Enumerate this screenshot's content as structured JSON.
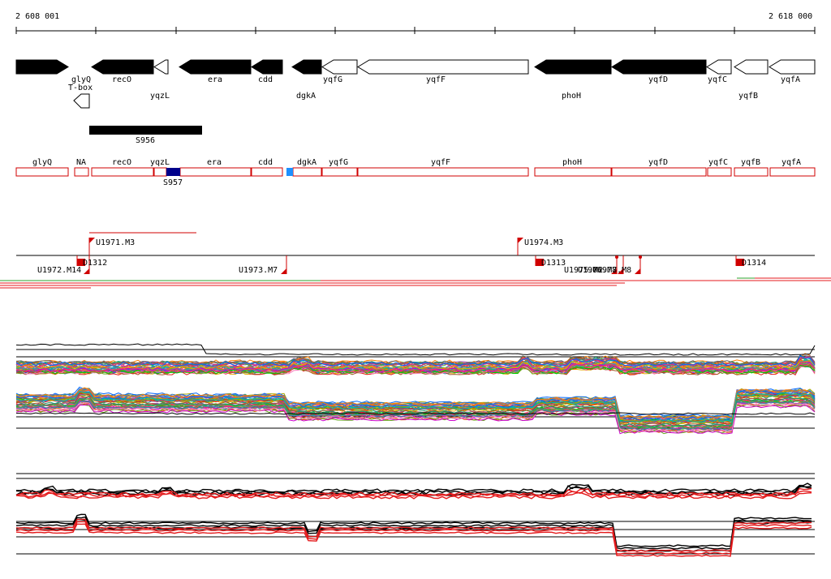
{
  "coords": {
    "start": "2 608 001",
    "end": "2 618 000"
  },
  "genes_top": [
    {
      "label": "glyQ",
      "dir": "right",
      "fill": "black"
    },
    {
      "label": "recO",
      "dir": "left",
      "fill": "black"
    },
    {
      "label": "yqzL",
      "dir": "left",
      "fill": "white"
    },
    {
      "label": "era",
      "dir": "left",
      "fill": "black"
    },
    {
      "label": "cdd",
      "dir": "left",
      "fill": "black"
    },
    {
      "label": "dgkA",
      "dir": "left",
      "fill": "black"
    },
    {
      "label": "yqfG",
      "dir": "left",
      "fill": "white"
    },
    {
      "label": "yqfF",
      "dir": "left",
      "fill": "white"
    },
    {
      "label": "phoH",
      "dir": "left",
      "fill": "black"
    },
    {
      "label": "yqfD",
      "dir": "left",
      "fill": "black"
    },
    {
      "label": "yqfC",
      "dir": "left",
      "fill": "white"
    },
    {
      "label": "yqfB",
      "dir": "left",
      "fill": "white"
    },
    {
      "label": "yqfA",
      "dir": "left",
      "fill": "white"
    }
  ],
  "tbox": {
    "label": "T-box"
  },
  "s956": {
    "label": "S956"
  },
  "annot_boxes": [
    {
      "label": "glyQ"
    },
    {
      "label": "NA"
    },
    {
      "label": "recO"
    },
    {
      "label": "yqzL"
    },
    {
      "label": "era"
    },
    {
      "label": "cdd"
    },
    {
      "label": "dgkA"
    },
    {
      "label": "yqfG"
    },
    {
      "label": "yqfF"
    },
    {
      "label": "phoH"
    },
    {
      "label": "yqfD"
    },
    {
      "label": "yqfC"
    },
    {
      "label": "yqfB"
    },
    {
      "label": "yqfA"
    }
  ],
  "s957": {
    "label": "S957"
  },
  "upshift_markers": [
    {
      "label": "U1971.M3"
    },
    {
      "label": "U1974.M3"
    },
    {
      "label": "U1972.M14"
    },
    {
      "label": "U1973.M7"
    },
    {
      "label": "U1975.M2"
    },
    {
      "label": "U1976.M8"
    },
    {
      "label": "U1977.M8"
    }
  ],
  "down_markers": [
    {
      "label": "D1312"
    },
    {
      "label": "D1313"
    },
    {
      "label": "D1314"
    }
  ],
  "colors": {
    "feature_red": "#d00000",
    "dark_blue": "#00008b",
    "light_blue": "#1e90ff",
    "track_green": "#2ca02c",
    "track_red": "#e41a1c"
  }
}
